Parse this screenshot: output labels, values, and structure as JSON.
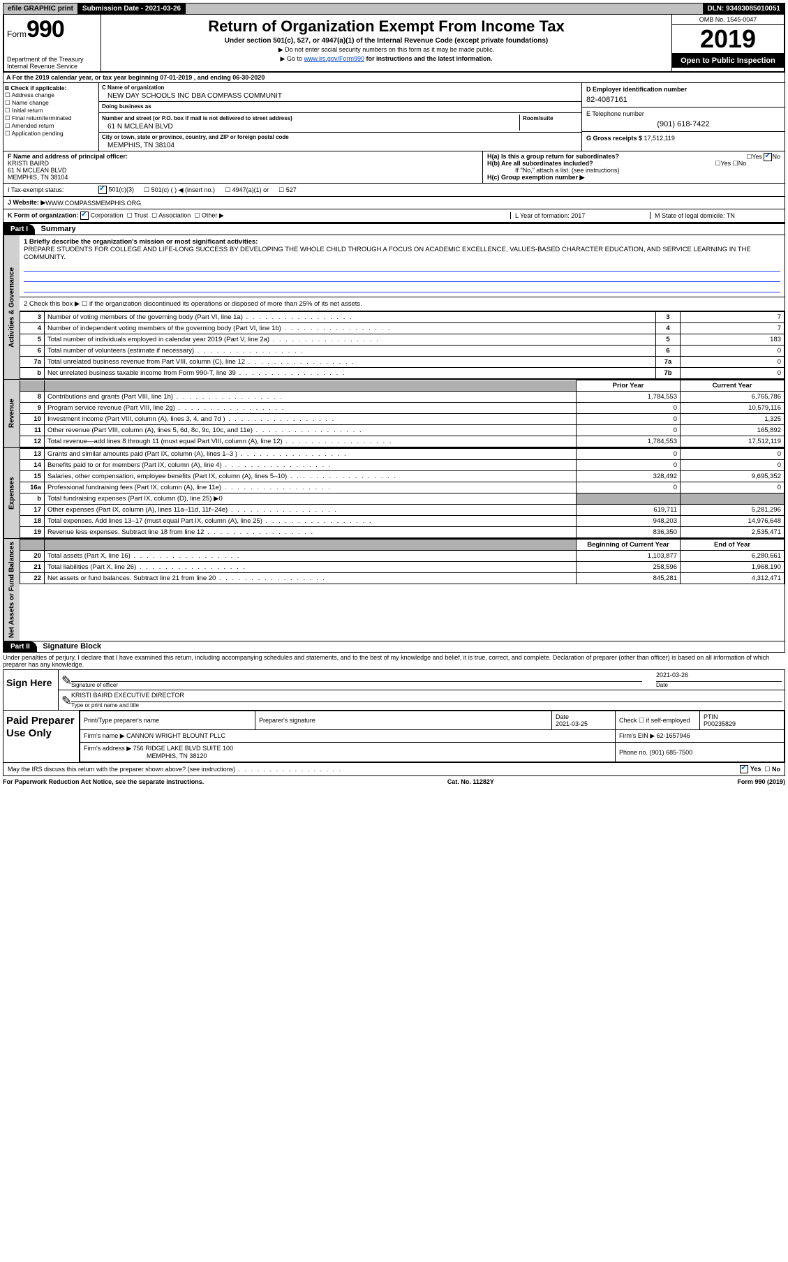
{
  "topbar": {
    "efile": "efile GRAPHIC print",
    "submission_label": "Submission Date - 2021-03-26",
    "dln": "DLN: 93493085010051"
  },
  "header": {
    "form_prefix": "Form",
    "form_number": "990",
    "dept": "Department of the Treasury",
    "irs": "Internal Revenue Service",
    "title": "Return of Organization Exempt From Income Tax",
    "subtitle": "Under section 501(c), 527, or 4947(a)(1) of the Internal Revenue Code (except private foundations)",
    "arrow1": "▶ Do not enter social security numbers on this form as it may be made public.",
    "arrow2_pre": "▶ Go to ",
    "arrow2_link": "www.irs.gov/Form990",
    "arrow2_post": " for instructions and the latest information.",
    "omb": "OMB No. 1545-0047",
    "year": "2019",
    "inspection": "Open to Public Inspection"
  },
  "rowA": "A For the 2019 calendar year, or tax year beginning 07-01-2019   , and ending 06-30-2020",
  "boxB": {
    "label": "B Check if applicable:",
    "opts": [
      "Address change",
      "Name change",
      "Initial return",
      "Final return/terminated",
      "Amended return",
      "Application pending"
    ]
  },
  "boxC": {
    "name_lbl": "C Name of organization",
    "name": "NEW DAY SCHOOLS INC DBA COMPASS COMMUNIT",
    "dba_lbl": "Doing business as",
    "dba": "",
    "street_lbl": "Number and street (or P.O. box if mail is not delivered to street address)",
    "room_lbl": "Room/suite",
    "street": "61 N MCLEAN BLVD",
    "city_lbl": "City or town, state or province, country, and ZIP or foreign postal code",
    "city": "MEMPHIS, TN  38104"
  },
  "boxD": {
    "lbl": "D Employer identification number",
    "val": "82-4087161"
  },
  "boxE": {
    "lbl": "E Telephone number",
    "val": "(901) 618-7422"
  },
  "boxG": {
    "lbl": "G Gross receipts $ ",
    "val": "17,512,119"
  },
  "boxF": {
    "lbl": "F  Name and address of principal officer:",
    "line1": "KRISTI BAIRD",
    "line2": "61 N MCLEAN BLVD",
    "line3": "MEMPHIS, TN  38104"
  },
  "boxH": {
    "a": "H(a)  Is this a group return for subordinates?",
    "b": "H(b)  Are all subordinates included?",
    "b_note": "If \"No,\" attach a list. (see instructions)",
    "c": "H(c)  Group exemption number ▶"
  },
  "taxexempt": {
    "lbl": "I  Tax-exempt status:",
    "o1": "501(c)(3)",
    "o2": "501(c) (  ) ◀ (insert no.)",
    "o3": "4947(a)(1) or",
    "o4": "527"
  },
  "website": {
    "lbl": "J  Website: ▶",
    "val": " WWW.COMPASSMEMPHIS.ORG"
  },
  "rowK": {
    "lbl": "K Form of organization:",
    "opts": [
      "Corporation",
      "Trust",
      "Association",
      "Other ▶"
    ],
    "L": "L Year of formation: 2017",
    "M": "M State of legal domicile: TN"
  },
  "part1": {
    "hdr": "Part I",
    "title": "Summary",
    "line1_lbl": "1  Briefly describe the organization's mission or most significant activities:",
    "mission": "PREPARE STUDENTS FOR COLLEGE AND LIFE-LONG SUCCESS BY DEVELOPING THE WHOLE CHILD THROUGH A FOCUS ON ACADEMIC EXCELLENCE, VALUES-BASED CHARACTER EDUCATION, AND SERVICE LEARNING IN THE COMMUNITY.",
    "line2": "2   Check this box ▶ ☐  if the organization discontinued its operations or disposed of more than 25% of its net assets."
  },
  "vtabs": {
    "gov": "Activities & Governance",
    "rev": "Revenue",
    "exp": "Expenses",
    "net": "Net Assets or Fund Balances"
  },
  "gov_rows": [
    {
      "n": "3",
      "d": "Number of voting members of the governing body (Part VI, line 1a)",
      "box": "3",
      "v": "7"
    },
    {
      "n": "4",
      "d": "Number of independent voting members of the governing body (Part VI, line 1b)",
      "box": "4",
      "v": "7"
    },
    {
      "n": "5",
      "d": "Total number of individuals employed in calendar year 2019 (Part V, line 2a)",
      "box": "5",
      "v": "183"
    },
    {
      "n": "6",
      "d": "Total number of volunteers (estimate if necessary)",
      "box": "6",
      "v": "0"
    },
    {
      "n": "7a",
      "d": "Total unrelated business revenue from Part VIII, column (C), line 12",
      "box": "7a",
      "v": "0"
    },
    {
      "n": "b",
      "d": "Net unrelated business taxable income from Form 990-T, line 39",
      "box": "7b",
      "v": "0"
    }
  ],
  "col_headers": {
    "prior": "Prior Year",
    "curr": "Current Year"
  },
  "rev_rows": [
    {
      "n": "8",
      "d": "Contributions and grants (Part VIII, line 1h)",
      "p": "1,784,553",
      "c": "6,765,786"
    },
    {
      "n": "9",
      "d": "Program service revenue (Part VIII, line 2g)",
      "p": "0",
      "c": "10,579,116"
    },
    {
      "n": "10",
      "d": "Investment income (Part VIII, column (A), lines 3, 4, and 7d )",
      "p": "0",
      "c": "1,325"
    },
    {
      "n": "11",
      "d": "Other revenue (Part VIII, column (A), lines 5, 6d, 8c, 9c, 10c, and 11e)",
      "p": "0",
      "c": "165,892"
    },
    {
      "n": "12",
      "d": "Total revenue—add lines 8 through 11 (must equal Part VIII, column (A), line 12)",
      "p": "1,784,553",
      "c": "17,512,119"
    }
  ],
  "exp_rows": [
    {
      "n": "13",
      "d": "Grants and similar amounts paid (Part IX, column (A), lines 1–3 )",
      "p": "0",
      "c": "0"
    },
    {
      "n": "14",
      "d": "Benefits paid to or for members (Part IX, column (A), line 4)",
      "p": "0",
      "c": "0"
    },
    {
      "n": "15",
      "d": "Salaries, other compensation, employee benefits (Part IX, column (A), lines 5–10)",
      "p": "328,492",
      "c": "9,695,352"
    },
    {
      "n": "16a",
      "d": "Professional fundraising fees (Part IX, column (A), line 11e)",
      "p": "0",
      "c": "0"
    },
    {
      "n": "b",
      "d": "Total fundraising expenses (Part IX, column (D), line 25) ▶0",
      "p": "",
      "c": "",
      "grey": true
    },
    {
      "n": "17",
      "d": "Other expenses (Part IX, column (A), lines 11a–11d, 11f–24e)",
      "p": "619,711",
      "c": "5,281,296"
    },
    {
      "n": "18",
      "d": "Total expenses. Add lines 13–17 (must equal Part IX, column (A), line 25)",
      "p": "948,203",
      "c": "14,976,648"
    },
    {
      "n": "19",
      "d": "Revenue less expenses. Subtract line 18 from line 12",
      "p": "836,350",
      "c": "2,535,471"
    }
  ],
  "net_headers": {
    "begin": "Beginning of Current Year",
    "end": "End of Year"
  },
  "net_rows": [
    {
      "n": "20",
      "d": "Total assets (Part X, line 16)",
      "p": "1,103,877",
      "c": "6,280,661"
    },
    {
      "n": "21",
      "d": "Total liabilities (Part X, line 26)",
      "p": "258,596",
      "c": "1,968,190"
    },
    {
      "n": "22",
      "d": "Net assets or fund balances. Subtract line 21 from line 20",
      "p": "845,281",
      "c": "4,312,471"
    }
  ],
  "part2": {
    "hdr": "Part II",
    "title": "Signature Block",
    "penalty": "Under penalties of perjury, I declare that I have examined this return, including accompanying schedules and statements, and to the best of my knowledge and belief, it is true, correct, and complete. Declaration of preparer (other than officer) is based on all information of which preparer has any knowledge."
  },
  "sign": {
    "here": "Sign Here",
    "sig_lbl": "Signature of officer",
    "date_lbl": "Date",
    "date": "2021-03-26",
    "name": "KRISTI BAIRD  EXECUTIVE DIRECTOR",
    "name_lbl": "Type or print name and title"
  },
  "paid": {
    "here": "Paid Preparer Use Only",
    "h1": "Print/Type preparer's name",
    "h2": "Preparer's signature",
    "h3": "Date",
    "date": "2021-03-25",
    "h4": "Check ☐ if self-employed",
    "h5": "PTIN",
    "ptin": "P00235829",
    "firm_lbl": "Firm's name    ▶",
    "firm": "CANNON WRIGHT BLOUNT PLLC",
    "ein_lbl": "Firm's EIN ▶",
    "ein": "62-1657946",
    "addr_lbl": "Firm's address ▶",
    "addr1": "756 RIDGE LAKE BLVD SUITE 100",
    "addr2": "MEMPHIS, TN  38120",
    "phone_lbl": "Phone no.",
    "phone": "(901) 685-7500"
  },
  "discuss": "May the IRS discuss this return with the preparer shown above? (see instructions)",
  "footer": {
    "left": "For Paperwork Reduction Act Notice, see the separate instructions.",
    "mid": "Cat. No. 11282Y",
    "right": "Form 990 (2019)"
  }
}
